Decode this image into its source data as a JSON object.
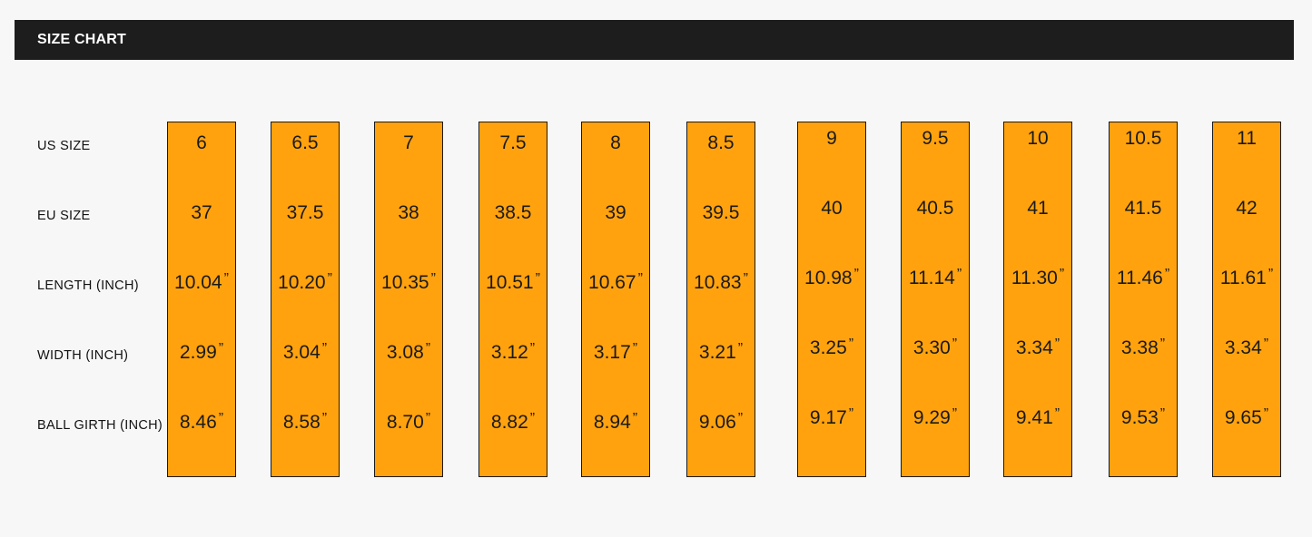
{
  "header": {
    "title": "SIZE CHART"
  },
  "rows": [
    "US SIZE",
    "EU SIZE",
    "LENGTH (INCH)",
    "WIDTH (INCH)",
    "BALL GIRTH (INCH)"
  ],
  "unit_mark": "”",
  "accent_color": "#ffa20e",
  "columns": [
    {
      "us": "6",
      "eu": "37",
      "length": "10.04",
      "width": "2.99",
      "girth": "8.46"
    },
    {
      "us": "6.5",
      "eu": "37.5",
      "length": "10.20",
      "width": "3.04",
      "girth": "8.58"
    },
    {
      "us": "7",
      "eu": "38",
      "length": "10.35",
      "width": "3.08",
      "girth": "8.70"
    },
    {
      "us": "7.5",
      "eu": "38.5",
      "length": "10.51",
      "width": "3.12",
      "girth": "8.82"
    },
    {
      "us": "8",
      "eu": "39",
      "length": "10.67",
      "width": "3.17",
      "girth": "8.94"
    },
    {
      "us": "8.5",
      "eu": "39.5",
      "length": "10.83",
      "width": "3.21",
      "girth": "9.06"
    },
    {
      "us": "9",
      "eu": "40",
      "length": "10.98",
      "width": "3.25",
      "girth": "9.17"
    },
    {
      "us": "9.5",
      "eu": "40.5",
      "length": "11.14",
      "width": "3.30",
      "girth": "9.29"
    },
    {
      "us": "10",
      "eu": "41",
      "length": "11.30",
      "width": "3.34",
      "girth": "9.41"
    },
    {
      "us": "10.5",
      "eu": "41.5",
      "length": "11.46",
      "width": "3.38",
      "girth": "9.53"
    },
    {
      "us": "11",
      "eu": "42",
      "length": "11.61",
      "width": "3.34",
      "girth": "9.65"
    }
  ]
}
